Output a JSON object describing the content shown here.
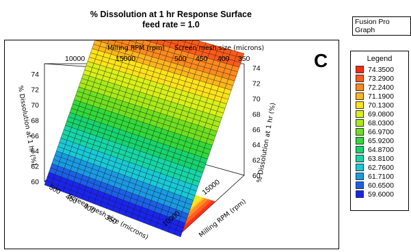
{
  "header": {
    "title_line1": "% Dissolution at 1 hr Response Surface",
    "title_line2": "feed rate = 1.0",
    "badge": "Fusion Pro Graph"
  },
  "panel_letter": "C",
  "legend": {
    "title": "Legend",
    "items": [
      {
        "label": "74.3500",
        "color": "#ff2a12"
      },
      {
        "label": "73.2900",
        "color": "#ff5a1a"
      },
      {
        "label": "72.2400",
        "color": "#ff8a1e"
      },
      {
        "label": "71.1900",
        "color": "#ffb51e"
      },
      {
        "label": "70.1300",
        "color": "#ffe31a"
      },
      {
        "label": "69.0800",
        "color": "#d9f01a"
      },
      {
        "label": "68.0300",
        "color": "#a8ea1a"
      },
      {
        "label": "66.9700",
        "color": "#6fe01f"
      },
      {
        "label": "65.9200",
        "color": "#32d93a"
      },
      {
        "label": "64.8700",
        "color": "#17d46e"
      },
      {
        "label": "63.8100",
        "color": "#16d6a6"
      },
      {
        "label": "62.7600",
        "color": "#19c9d7"
      },
      {
        "label": "61.7100",
        "color": "#1a9ae4"
      },
      {
        "label": "60.6500",
        "color": "#1a60e8"
      },
      {
        "label": "59.6000",
        "color": "#1a24ee"
      }
    ]
  },
  "chart_data": {
    "type": "surface",
    "title": "% Dissolution at 1 hr Response Surface",
    "subtitle": "feed rate = 1.0",
    "x_axis": {
      "label": "Milling RPM (rpm)",
      "back_label": "Milling RPM (rpm)",
      "ticks": [
        10000,
        15000
      ],
      "range": [
        10000,
        20000
      ]
    },
    "y_axis": {
      "label": "Screen mesh size (microns)",
      "ticks": [
        500,
        450,
        400,
        350
      ],
      "range": [
        350,
        500
      ]
    },
    "z_axis": {
      "label": "% Dissolution at 1 hr (%)",
      "ticks": [
        60,
        62,
        64,
        66,
        68,
        70,
        72,
        74
      ],
      "range": [
        60,
        75
      ]
    },
    "surface_corners": [
      {
        "rpm": 10000,
        "mesh": 500,
        "dissolution": 59.6
      },
      {
        "rpm": 10000,
        "mesh": 350,
        "dissolution": 74.35
      },
      {
        "rpm": 20000,
        "mesh": 500,
        "dissolution": 59.6
      },
      {
        "rpm": 20000,
        "mesh": 350,
        "dissolution": 74.35
      }
    ],
    "grid": true,
    "legend_position": "right"
  }
}
